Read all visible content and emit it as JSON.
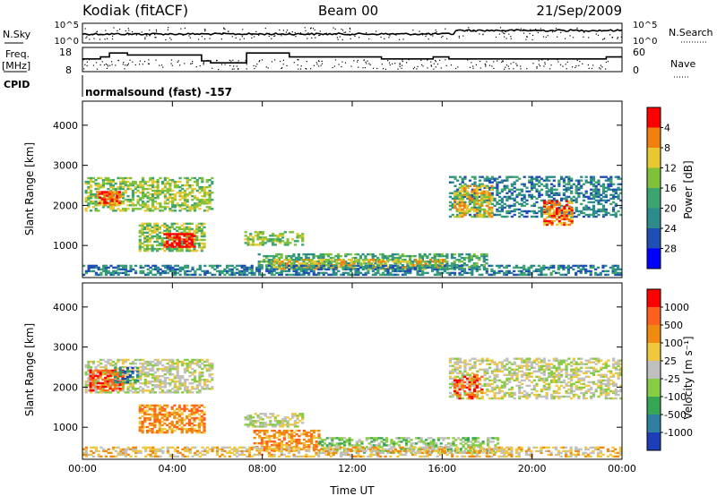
{
  "header": {
    "station": "Kodiak (fitACF)",
    "beam": "Beam 00",
    "date": "21/Sep/2009"
  },
  "params": {
    "nsky_label": "N.Sky",
    "nsky_ticks": [
      "10^5",
      "10^0"
    ],
    "nsearch_label": "N.Search",
    "nsearch_ticks": [
      "10^5",
      "10^0"
    ],
    "freq_label_1": "Freq.",
    "freq_label_2": "[MHz]",
    "freq_ticks": [
      "18",
      "8"
    ],
    "nave_label": "Nave",
    "nave_ticks": [
      "60",
      "0"
    ],
    "cpid_label": "CPID",
    "cpid_value": "normalsound (fast) -157"
  },
  "chart_data": [
    {
      "type": "heatmap",
      "title": "",
      "ylabel": "Slant Range [km]",
      "xlabel": "",
      "ylim": [
        200,
        4600
      ],
      "yticks": [
        "1000",
        "2000",
        "3000",
        "4000"
      ],
      "xticks": [
        "00:00",
        "04:00",
        "08:00",
        "12:00",
        "16:00",
        "20:00",
        "00:00"
      ],
      "colorbar": {
        "label": "Power [dB]",
        "ticks": [
          "4",
          "8",
          "12",
          "16",
          "20",
          "24",
          "28"
        ],
        "colors": [
          "#0000ff",
          "#1f4fb5",
          "#2e8b8b",
          "#3ca46e",
          "#7fc23a",
          "#e8c830",
          "#f08010",
          "#ff0000"
        ]
      },
      "regions": [
        {
          "t0": 0.1,
          "t1": 5.8,
          "r0": 1850,
          "r1": 2700,
          "level": 4,
          "density": 0.55
        },
        {
          "t0": 0.6,
          "t1": 1.6,
          "r0": 2000,
          "r1": 2350,
          "level": 6,
          "density": 0.7
        },
        {
          "t0": 2.5,
          "t1": 5.4,
          "r0": 850,
          "r1": 1550,
          "level": 4,
          "density": 0.6
        },
        {
          "t0": 3.6,
          "t1": 5.0,
          "r0": 950,
          "r1": 1300,
          "level": 7,
          "density": 0.7
        },
        {
          "t0": 7.2,
          "t1": 9.8,
          "r0": 1000,
          "r1": 1350,
          "level": 4,
          "density": 0.5
        },
        {
          "t0": 7.8,
          "t1": 18.0,
          "r0": 400,
          "r1": 800,
          "level": 3,
          "density": 0.55
        },
        {
          "t0": 8.5,
          "t1": 16.0,
          "r0": 400,
          "r1": 650,
          "level": 5,
          "density": 0.5
        },
        {
          "t0": 0.0,
          "t1": 24.0,
          "r0": 250,
          "r1": 500,
          "level": 2,
          "density": 0.55
        },
        {
          "t0": 16.3,
          "t1": 24.0,
          "r0": 1700,
          "r1": 2700,
          "level": 2,
          "density": 0.45
        },
        {
          "t0": 16.5,
          "t1": 18.2,
          "r0": 1700,
          "r1": 2500,
          "level": 5,
          "density": 0.55
        },
        {
          "t0": 20.5,
          "t1": 21.8,
          "r0": 1500,
          "r1": 2100,
          "level": 6,
          "density": 0.6
        }
      ]
    },
    {
      "type": "heatmap",
      "title": "",
      "ylabel": "Slant Range [km]",
      "xlabel": "Time UT",
      "ylim": [
        200,
        4600
      ],
      "yticks": [
        "1000",
        "2000",
        "3000",
        "4000"
      ],
      "xticks": [
        "00:00",
        "04:00",
        "08:00",
        "12:00",
        "16:00",
        "20:00",
        "00:00"
      ],
      "colorbar": {
        "label": "Velocity [m s⁻¹]",
        "ticks": [
          "1000",
          "500",
          "100",
          "25",
          "-25",
          "-100",
          "-500",
          "-1000"
        ],
        "colors": [
          "#1c3fb8",
          "#2e7fa0",
          "#36a655",
          "#88cc44",
          "#c0c0c0",
          "#f0c840",
          "#f08a10",
          "#ff6020",
          "#ff0000"
        ]
      },
      "regions": [
        {
          "t0": 0.1,
          "t1": 5.8,
          "r0": 1850,
          "r1": 2700,
          "level": 4,
          "density": 0.55
        },
        {
          "t0": 0.3,
          "t1": 1.8,
          "r0": 1900,
          "r1": 2400,
          "level": 7,
          "density": 0.6
        },
        {
          "t0": 1.4,
          "t1": 2.4,
          "r0": 2100,
          "r1": 2500,
          "level": 1,
          "density": 0.5
        },
        {
          "t0": 2.5,
          "t1": 5.4,
          "r0": 850,
          "r1": 1550,
          "level": 6,
          "density": 0.6
        },
        {
          "t0": 7.2,
          "t1": 9.8,
          "r0": 1000,
          "r1": 1350,
          "level": 4,
          "density": 0.6
        },
        {
          "t0": 7.6,
          "t1": 10.5,
          "r0": 400,
          "r1": 900,
          "level": 6,
          "density": 0.55
        },
        {
          "t0": 10.5,
          "t1": 18.5,
          "r0": 350,
          "r1": 750,
          "level": 3,
          "density": 0.5
        },
        {
          "t0": 0.0,
          "t1": 24.0,
          "r0": 250,
          "r1": 480,
          "level": 5,
          "density": 0.45
        },
        {
          "t0": 16.3,
          "t1": 24.0,
          "r0": 1700,
          "r1": 2700,
          "level": 4,
          "density": 0.5
        },
        {
          "t0": 16.5,
          "t1": 17.8,
          "r0": 1700,
          "r1": 2300,
          "level": 7,
          "density": 0.35
        }
      ]
    }
  ],
  "time_series": {
    "freq_steps": [
      {
        "t0": 0.0,
        "t1": 0.8,
        "v": 14
      },
      {
        "t0": 0.8,
        "t1": 1.2,
        "v": 15
      },
      {
        "t0": 1.2,
        "t1": 2.0,
        "v": 17
      },
      {
        "t0": 2.0,
        "t1": 5.3,
        "v": 16
      },
      {
        "t0": 5.3,
        "t1": 5.7,
        "v": 13
      },
      {
        "t0": 5.7,
        "t1": 7.3,
        "v": 12
      },
      {
        "t0": 7.3,
        "t1": 9.2,
        "v": 17
      },
      {
        "t0": 9.2,
        "t1": 13.3,
        "v": 15
      },
      {
        "t0": 13.3,
        "t1": 15.6,
        "v": 14
      },
      {
        "t0": 15.6,
        "t1": 16.3,
        "v": 15
      },
      {
        "t0": 16.3,
        "t1": 17.8,
        "v": 14
      },
      {
        "t0": 17.8,
        "t1": 23.3,
        "v": 14
      },
      {
        "t0": 23.3,
        "t1": 24.0,
        "v": 15
      }
    ]
  }
}
